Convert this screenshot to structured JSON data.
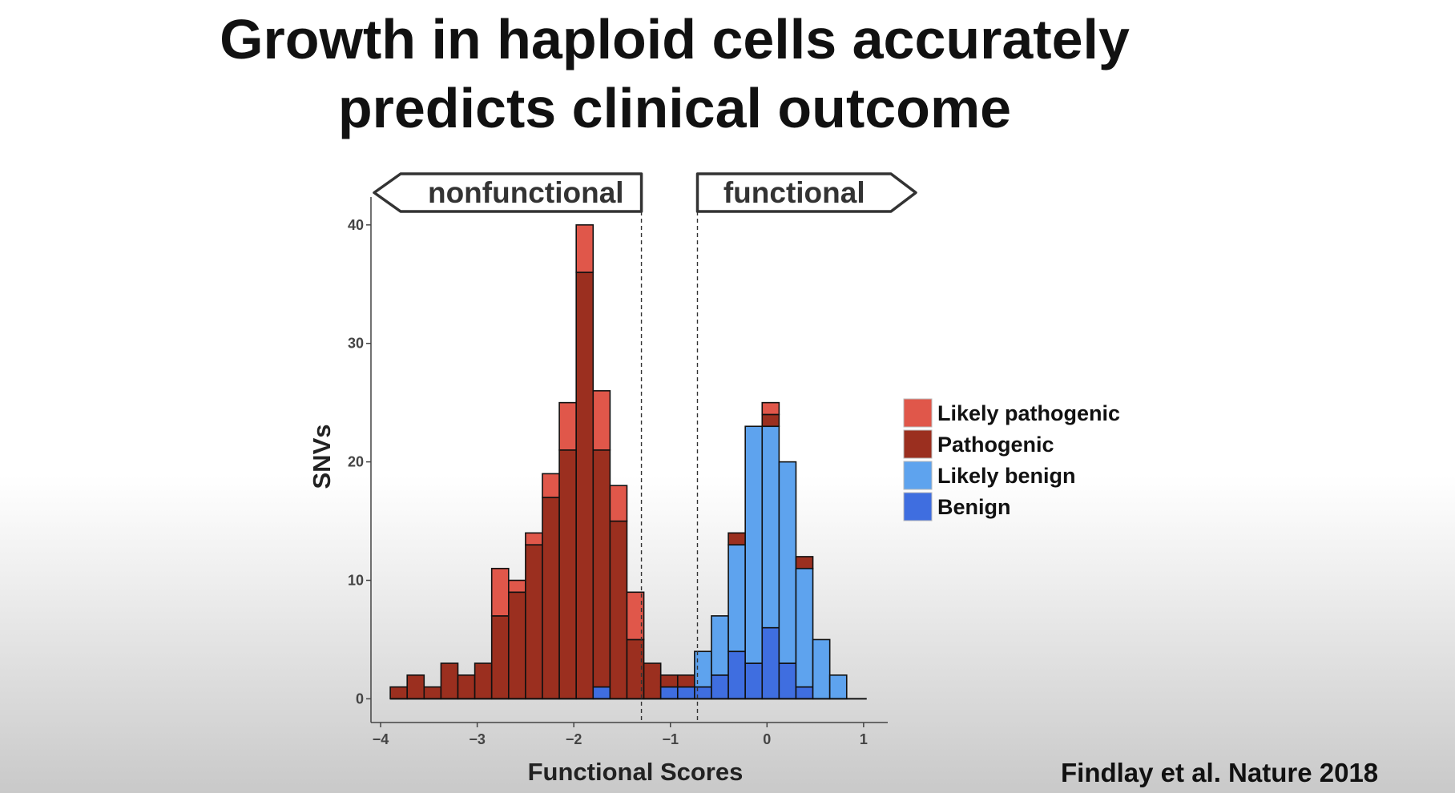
{
  "slide": {
    "title_line1": "Growth in haploid cells accurately",
    "title_line2": "predicts clinical outcome",
    "citation": "Findlay et al. Nature 2018"
  },
  "chart_data": {
    "type": "bar",
    "subtype": "stacked histogram",
    "xlabel": "Functional Scores",
    "ylabel": "SNVs",
    "xlim": [
      -4.1,
      1.25
    ],
    "ylim": [
      -2,
      41
    ],
    "xticks": [
      "−4",
      "−3",
      "−2",
      "−1",
      "0",
      "1"
    ],
    "xtick_values": [
      -4,
      -3,
      -2,
      -1,
      0,
      1
    ],
    "yticks": [
      "0",
      "10",
      "20",
      "30",
      "40"
    ],
    "ytick_values": [
      0,
      10,
      20,
      30,
      40
    ],
    "bin_width": 0.175,
    "bin_starts": [
      -3.9,
      -3.725,
      -3.55,
      -3.375,
      -3.2,
      -3.025,
      -2.85,
      -2.675,
      -2.5,
      -2.325,
      -2.15,
      -1.975,
      -1.8,
      -1.625,
      -1.45,
      -1.275,
      -1.1,
      -0.925,
      -0.75,
      -0.575,
      -0.4,
      -0.225,
      -0.05,
      0.125,
      0.3,
      0.475,
      0.65
    ],
    "series": [
      {
        "name": "Benign",
        "color": "#3f6ee0",
        "values": [
          0,
          0,
          0,
          0,
          0,
          0,
          0,
          0,
          0,
          0,
          0,
          0,
          1,
          0,
          0,
          0,
          1,
          1,
          1,
          2,
          4,
          3,
          6,
          3,
          1,
          0,
          0
        ]
      },
      {
        "name": "Likely benign",
        "color": "#5ea3ee",
        "values": [
          0,
          0,
          0,
          0,
          0,
          0,
          0,
          0,
          0,
          0,
          0,
          0,
          0,
          0,
          0,
          0,
          0,
          0,
          3,
          5,
          9,
          20,
          17,
          17,
          10,
          5,
          2
        ]
      },
      {
        "name": "Pathogenic",
        "color": "#9b2f1f",
        "values": [
          1,
          2,
          1,
          3,
          2,
          3,
          7,
          9,
          13,
          17,
          21,
          36,
          20,
          15,
          5,
          3,
          1,
          1,
          0,
          0,
          1,
          0,
          1,
          0,
          1,
          0,
          0
        ]
      },
      {
        "name": "Likely pathogenic",
        "color": "#e0574a",
        "values": [
          0,
          0,
          0,
          0,
          0,
          0,
          4,
          1,
          1,
          2,
          4,
          4,
          5,
          3,
          4,
          0,
          0,
          0,
          0,
          0,
          0,
          0,
          1,
          0,
          0,
          0,
          0
        ]
      }
    ],
    "legend": [
      "Likely pathogenic",
      "Pathogenic",
      "Likely benign",
      "Benign"
    ],
    "thresholds": [
      -1.3,
      -0.72
    ],
    "annotations": {
      "left": "nonfunctional",
      "right": "functional"
    }
  }
}
